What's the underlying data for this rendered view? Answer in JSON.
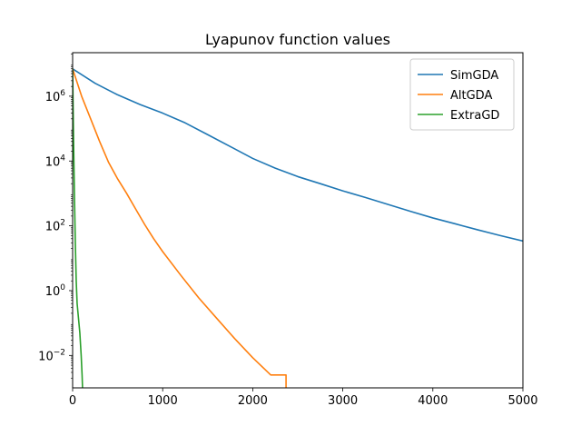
{
  "chart_data": {
    "type": "line",
    "title": "Lyapunov function values",
    "xlabel": "",
    "ylabel": "",
    "xlim": [
      0,
      5000
    ],
    "ylim": [
      0.001,
      22000000
    ],
    "yscale": "log",
    "grid": false,
    "legend_position": "top-right",
    "x_ticks": [
      {
        "value": 0,
        "label": "0"
      },
      {
        "value": 1000,
        "label": "1000"
      },
      {
        "value": 2000,
        "label": "2000"
      },
      {
        "value": 3000,
        "label": "3000"
      },
      {
        "value": 4000,
        "label": "4000"
      },
      {
        "value": 5000,
        "label": "5000"
      }
    ],
    "y_ticks": [
      {
        "value": 1000000,
        "base": "10",
        "exp": "6"
      },
      {
        "value": 10000,
        "base": "10",
        "exp": "4"
      },
      {
        "value": 100,
        "base": "10",
        "exp": "2"
      },
      {
        "value": 1,
        "base": "10",
        "exp": "0"
      },
      {
        "value": 0.01,
        "base": "10",
        "exp": "−2"
      }
    ],
    "series": [
      {
        "name": "SimGDA",
        "color": "#1f77b4",
        "points": [
          [
            0,
            7000000
          ],
          [
            250,
            2500000
          ],
          [
            500,
            1100000
          ],
          [
            750,
            550000
          ],
          [
            1000,
            300000
          ],
          [
            1250,
            150000
          ],
          [
            1500,
            65000
          ],
          [
            1750,
            28000
          ],
          [
            2000,
            12000
          ],
          [
            2250,
            6000
          ],
          [
            2500,
            3300
          ],
          [
            2750,
            2000
          ],
          [
            3000,
            1200
          ],
          [
            3250,
            750
          ],
          [
            3500,
            460
          ],
          [
            3750,
            280
          ],
          [
            4000,
            175
          ],
          [
            4250,
            115
          ],
          [
            4500,
            75
          ],
          [
            4750,
            50
          ],
          [
            5000,
            34
          ]
        ]
      },
      {
        "name": "AltGDA",
        "color": "#ff7f0e",
        "points": [
          [
            0,
            7000000
          ],
          [
            100,
            1000000
          ],
          [
            200,
            200000
          ],
          [
            300,
            40000
          ],
          [
            400,
            9000
          ],
          [
            500,
            2800
          ],
          [
            600,
            1000
          ],
          [
            700,
            330
          ],
          [
            800,
            110
          ],
          [
            900,
            40
          ],
          [
            1000,
            16
          ],
          [
            1200,
            3
          ],
          [
            1400,
            0.6
          ],
          [
            1600,
            0.14
          ],
          [
            1800,
            0.033
          ],
          [
            2000,
            0.0085
          ],
          [
            2200,
            0.0025
          ],
          [
            2370,
            0.0025
          ],
          [
            2370,
            0.001
          ]
        ]
      },
      {
        "name": "ExtraGD",
        "color": "#2ca02c",
        "points": [
          [
            0,
            7000000
          ],
          [
            10,
            50000
          ],
          [
            20,
            1000
          ],
          [
            30,
            30
          ],
          [
            40,
            2
          ],
          [
            50,
            0.4
          ],
          [
            60,
            0.2
          ],
          [
            80,
            0.05
          ],
          [
            95,
            0.01
          ],
          [
            100,
            0.005
          ],
          [
            105,
            0.0025
          ],
          [
            110,
            0.001
          ]
        ]
      }
    ]
  }
}
